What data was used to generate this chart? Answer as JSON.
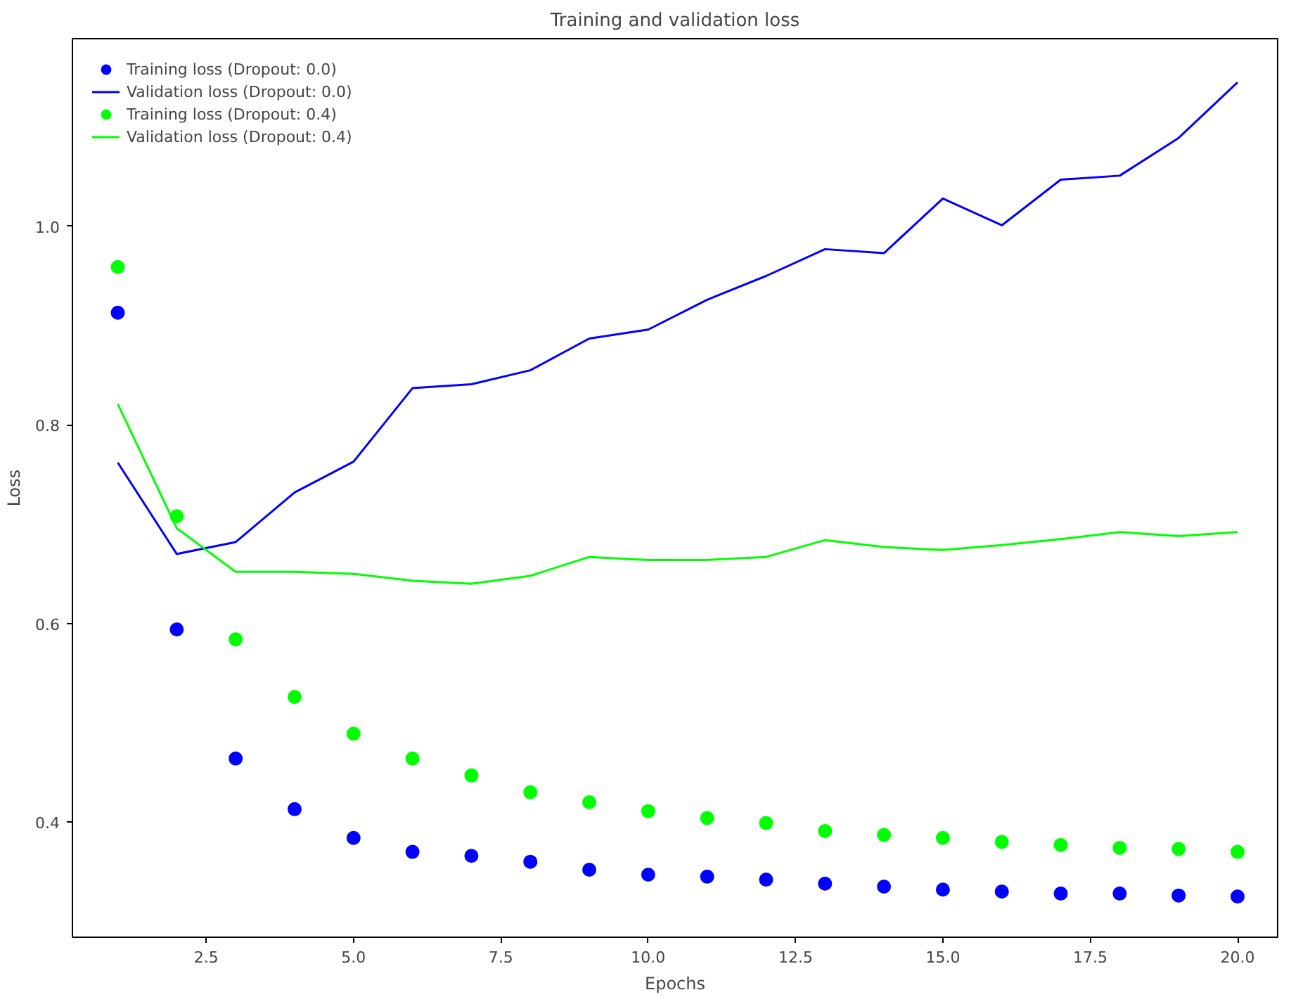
{
  "chart_data": {
    "type": "line",
    "title": "Training and validation loss",
    "xlabel": "Epochs",
    "ylabel": "Loss",
    "x": [
      1,
      2,
      3,
      4,
      5,
      6,
      7,
      8,
      9,
      10,
      11,
      12,
      13,
      14,
      15,
      16,
      17,
      18,
      19,
      20
    ],
    "series": [
      {
        "name": "Training loss (Dropout: 0.0)",
        "type": "scatter",
        "marker": "circle",
        "color": "#0000ff",
        "values": [
          0.913,
          0.594,
          0.464,
          0.413,
          0.384,
          0.37,
          0.366,
          0.36,
          0.352,
          0.347,
          0.345,
          0.342,
          0.338,
          0.335,
          0.332,
          0.33,
          0.328,
          0.328,
          0.326,
          0.325
        ]
      },
      {
        "name": "Validation loss (Dropout: 0.0)",
        "color": "#0000ff",
        "values": [
          0.762,
          0.67,
          0.682,
          0.732,
          0.763,
          0.837,
          0.841,
          0.855,
          0.887,
          0.896,
          0.926,
          0.95,
          0.977,
          0.973,
          1.028,
          1.001,
          1.047,
          1.051,
          1.089,
          1.145
        ]
      },
      {
        "name": "Training loss (Dropout: 0.4)",
        "type": "scatter",
        "marker": "circle",
        "color": "#00ff00",
        "values": [
          0.959,
          0.708,
          0.584,
          0.526,
          0.489,
          0.464,
          0.447,
          0.43,
          0.42,
          0.411,
          0.404,
          0.399,
          0.391,
          0.387,
          0.384,
          0.38,
          0.377,
          0.374,
          0.373,
          0.37
        ]
      },
      {
        "name": "Validation loss (Dropout: 0.4)",
        "color": "#00ff00",
        "values": [
          0.821,
          0.696,
          0.652,
          0.652,
          0.65,
          0.643,
          0.64,
          0.648,
          0.667,
          0.664,
          0.664,
          0.667,
          0.684,
          0.677,
          0.674,
          0.679,
          0.685,
          0.692,
          0.688,
          0.692
        ]
      }
    ],
    "xlim": [
      0.23,
      20.68
    ],
    "ylim": [
      0.284,
      1.189
    ],
    "xticks": [
      2.5,
      {
        "value": 5,
        "label": "5.0"
      },
      7.5,
      {
        "value": 10,
        "label": "10.0"
      },
      12.5,
      {
        "value": 15,
        "label": "15.0"
      },
      17.5,
      {
        "value": 20,
        "label": "20.0"
      }
    ],
    "yticks": [
      0.4,
      0.6,
      0.8,
      {
        "value": 1,
        "label": "1.0"
      }
    ],
    "line_style": "solid",
    "grid": false,
    "legend": "top left"
  }
}
